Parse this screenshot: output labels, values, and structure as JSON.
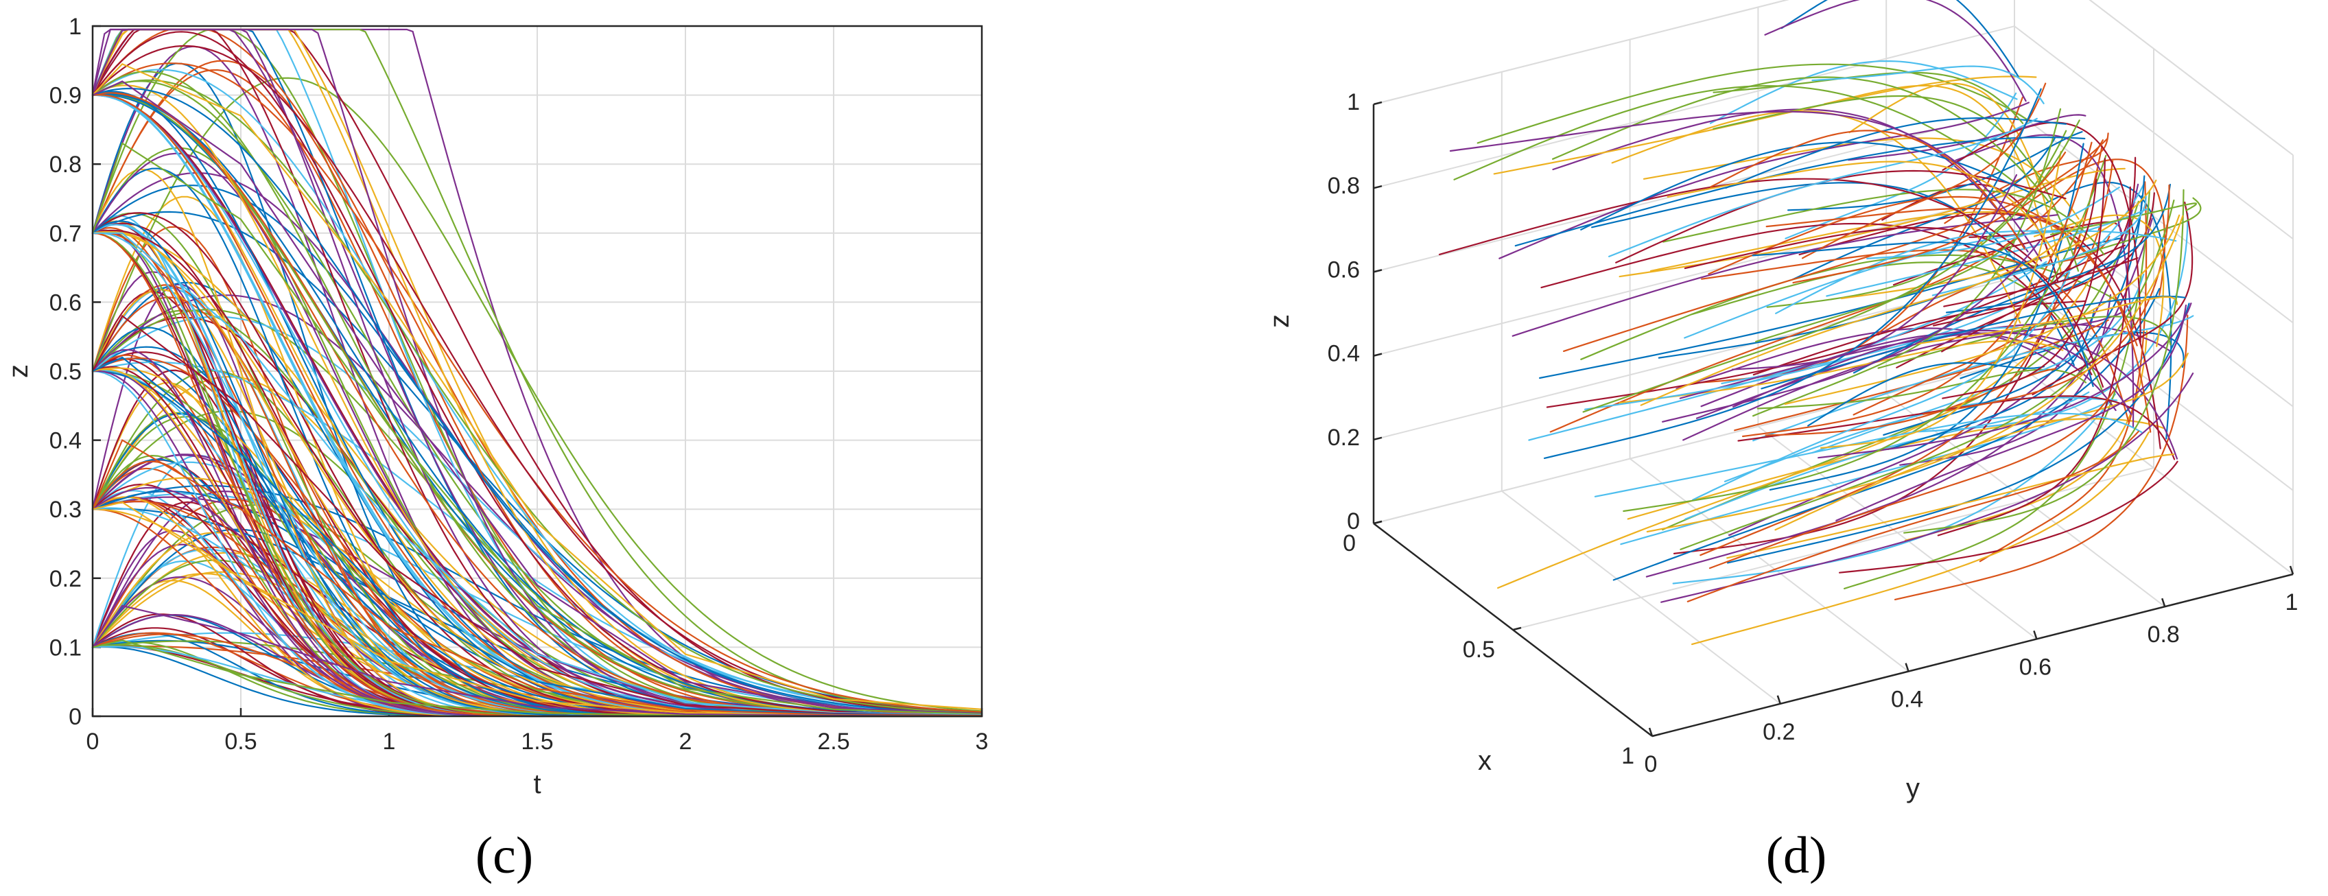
{
  "panels": [
    {
      "label": "(c)"
    },
    {
      "label": "(d)"
    }
  ],
  "colors": [
    "#0072BD",
    "#D95319",
    "#EDB120",
    "#7E2F8E",
    "#77AC30",
    "#4DBEEE",
    "#A2142F"
  ],
  "chart_data": [
    {
      "type": "line",
      "title": "",
      "xlabel": "t",
      "ylabel": "z",
      "xlim": [
        0,
        3
      ],
      "ylim": [
        0,
        1
      ],
      "xticks": [
        "0",
        "0.5",
        "1",
        "1.5",
        "2",
        "2.5",
        "3"
      ],
      "yticks": [
        "0",
        "0.1",
        "0.2",
        "0.3",
        "0.4",
        "0.5",
        "0.6",
        "0.7",
        "0.8",
        "0.9",
        "1"
      ],
      "grid": true,
      "legend": "none",
      "initial_values": [
        0.1,
        0.3,
        0.5,
        0.7,
        0.9
      ],
      "representative_series": [
        {
          "x": [
            0,
            0.1,
            0.5,
            1,
            1.5,
            2,
            2.5,
            3
          ],
          "values": [
            0.9,
            0.945,
            0.87,
            0.6,
            0.28,
            0.09,
            0.025,
            0.01
          ]
        },
        {
          "x": [
            0,
            0.1,
            0.5,
            1,
            1.5,
            2,
            2.5,
            3
          ],
          "values": [
            0.9,
            0.92,
            0.8,
            0.48,
            0.19,
            0.05,
            0.012,
            0.004
          ]
        },
        {
          "x": [
            0,
            0.1,
            0.5,
            1,
            1.5,
            2,
            2.5,
            3
          ],
          "values": [
            0.7,
            0.83,
            0.72,
            0.42,
            0.16,
            0.04,
            0.01,
            0.003
          ]
        },
        {
          "x": [
            0,
            0.1,
            0.5,
            1,
            1.5,
            2,
            2.5,
            3
          ],
          "values": [
            0.7,
            0.7,
            0.55,
            0.28,
            0.09,
            0.02,
            0.005,
            0.002
          ]
        },
        {
          "x": [
            0,
            0.1,
            0.5,
            1,
            1.5,
            2,
            2.5,
            3
          ],
          "values": [
            0.5,
            0.58,
            0.45,
            0.22,
            0.07,
            0.016,
            0.004,
            0.001
          ]
        },
        {
          "x": [
            0,
            0.1,
            0.5,
            1,
            1.5,
            2,
            2.5,
            3
          ],
          "values": [
            0.5,
            0.52,
            0.38,
            0.17,
            0.05,
            0.011,
            0.003,
            0.001
          ]
        },
        {
          "x": [
            0,
            0.1,
            0.5,
            1,
            1.5,
            2,
            2.5,
            3
          ],
          "values": [
            0.3,
            0.4,
            0.3,
            0.13,
            0.04,
            0.009,
            0.002,
            0.001
          ]
        },
        {
          "x": [
            0,
            0.1,
            0.5,
            1,
            1.5,
            2,
            2.5,
            3
          ],
          "values": [
            0.3,
            0.31,
            0.2,
            0.08,
            0.022,
            0.005,
            0.001,
            0
          ]
        },
        {
          "x": [
            0,
            0.1,
            0.5,
            1,
            1.5,
            2,
            2.5,
            3
          ],
          "values": [
            0.1,
            0.16,
            0.12,
            0.05,
            0.014,
            0.003,
            0.001,
            0
          ]
        },
        {
          "x": [
            0,
            0.1,
            0.5,
            1,
            1.5,
            2,
            2.5,
            3
          ],
          "values": [
            0.1,
            0.11,
            0.06,
            0.02,
            0.005,
            0.001,
            0,
            0
          ]
        }
      ]
    },
    {
      "type": "line",
      "title": "",
      "xlabel": "x",
      "ylabel": "y",
      "zlabel": "z",
      "xlim": [
        0,
        1
      ],
      "ylim": [
        0,
        1
      ],
      "zlim": [
        0,
        1
      ],
      "xticks": [
        "0",
        "0.5",
        "1"
      ],
      "yticks": [
        "0",
        "0.2",
        "0.4",
        "0.6",
        "0.8",
        "1"
      ],
      "zticks": [
        "0",
        "0.2",
        "0.4",
        "0.6",
        "0.8",
        "1"
      ],
      "grid": true,
      "legend": "none",
      "view": "3d"
    }
  ]
}
